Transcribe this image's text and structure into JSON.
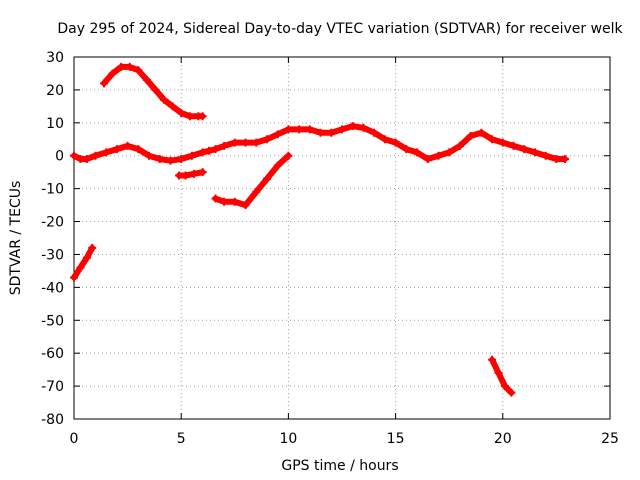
{
  "chart_data": {
    "type": "scatter",
    "title": "Day 295 of 2024, Sidereal Day-to-day VTEC variation (SDTVAR) for receiver welk",
    "xlabel": "GPS time / hours",
    "ylabel": "SDTVAR / TECUs",
    "xlim": [
      0,
      25
    ],
    "ylim": [
      -80,
      30
    ],
    "xticks": [
      0,
      5,
      10,
      15,
      20,
      25
    ],
    "yticks": [
      30,
      20,
      10,
      0,
      -10,
      -20,
      -30,
      -40,
      -50,
      -60,
      -70,
      -80
    ],
    "grid": true,
    "marker_color": "#ff0000",
    "series": [
      {
        "name": "segment-1",
        "x": [
          0.0,
          0.3,
          0.6,
          0.85
        ],
        "y": [
          -37,
          -34,
          -31,
          -28
        ]
      },
      {
        "name": "segment-2",
        "x": [
          1.4,
          1.8,
          2.2,
          2.6,
          3.0,
          3.4,
          3.8,
          4.2,
          4.6,
          5.0,
          5.4,
          5.8,
          6.0
        ],
        "y": [
          22,
          25,
          27,
          27,
          26,
          23,
          20,
          17,
          15,
          13,
          12,
          12,
          12
        ]
      },
      {
        "name": "segment-3",
        "x": [
          0.0,
          0.3,
          0.6,
          1.0,
          1.5,
          2.0,
          2.5,
          3.0,
          3.5,
          4.0,
          4.5,
          5.0,
          5.5,
          6.0,
          6.3,
          6.6,
          7.0,
          7.5,
          8.0,
          8.5,
          9.0,
          9.5,
          10.0,
          10.5,
          11.0,
          11.5,
          12.0,
          12.5,
          13.0,
          13.5,
          14.0,
          14.5,
          15.0,
          15.5,
          16.0,
          16.5,
          17.0,
          17.5,
          18.0,
          18.5,
          19.0,
          19.5,
          20.0,
          20.5,
          21.0,
          21.5,
          22.0,
          22.5,
          22.9
        ],
        "y": [
          0,
          -1,
          -1,
          0,
          1,
          2,
          3,
          2,
          0,
          -1,
          -1.5,
          -1,
          0,
          1,
          1.5,
          2,
          3,
          4,
          4,
          4,
          5,
          6.5,
          8,
          8,
          8,
          7,
          7,
          8,
          9,
          8.5,
          7,
          5,
          4,
          2,
          1,
          -1,
          0,
          1,
          3,
          6,
          7,
          5,
          4,
          3,
          2,
          1,
          0,
          -1,
          -1
        ]
      },
      {
        "name": "segment-4",
        "x": [
          4.9,
          5.2,
          5.6,
          6.0
        ],
        "y": [
          -6,
          -6,
          -5.5,
          -5
        ]
      },
      {
        "name": "segment-5",
        "x": [
          6.6,
          7.0,
          7.5,
          8.0,
          8.5,
          9.0,
          9.5,
          10.0
        ],
        "y": [
          -13,
          -14,
          -14,
          -15,
          -11,
          -7,
          -3,
          0
        ]
      },
      {
        "name": "segment-6",
        "x": [
          19.5,
          19.8,
          20.1,
          20.4
        ],
        "y": [
          -62,
          -66,
          -70,
          -72
        ]
      }
    ]
  }
}
